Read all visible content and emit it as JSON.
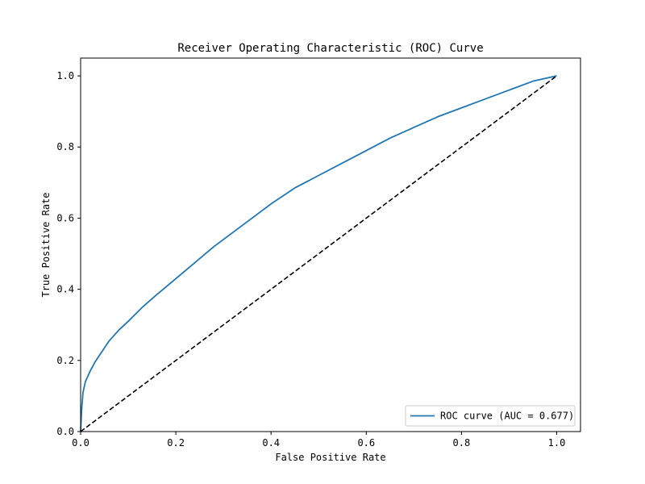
{
  "chart_data": {
    "type": "line",
    "title": "Receiver Operating Characteristic (ROC) Curve",
    "xlabel": "False Positive Rate",
    "ylabel": "True Positive Rate",
    "xlim": [
      0.0,
      1.05
    ],
    "ylim": [
      0.0,
      1.05
    ],
    "xticks": [
      0.0,
      0.2,
      0.4,
      0.6,
      0.8,
      1.0
    ],
    "yticks": [
      0.0,
      0.2,
      0.4,
      0.6,
      0.8,
      1.0
    ],
    "xtick_labels": [
      "0.0",
      "0.2",
      "0.4",
      "0.6",
      "0.8",
      "1.0"
    ],
    "ytick_labels": [
      "0.0",
      "0.2",
      "0.4",
      "0.6",
      "0.8",
      "1.0"
    ],
    "grid": false,
    "legend_position": "lower-right",
    "series": [
      {
        "name": "ROC curve (AUC = 0.677)",
        "color": "#1f77b4",
        "style": "solid",
        "x": [
          0.0,
          0.002,
          0.005,
          0.01,
          0.02,
          0.03,
          0.045,
          0.06,
          0.08,
          0.1,
          0.13,
          0.16,
          0.2,
          0.24,
          0.28,
          0.32,
          0.36,
          0.4,
          0.45,
          0.5,
          0.55,
          0.6,
          0.65,
          0.7,
          0.75,
          0.8,
          0.85,
          0.9,
          0.95,
          1.0
        ],
        "y": [
          0.0,
          0.06,
          0.11,
          0.14,
          0.17,
          0.195,
          0.225,
          0.255,
          0.285,
          0.31,
          0.35,
          0.385,
          0.43,
          0.475,
          0.52,
          0.56,
          0.6,
          0.64,
          0.685,
          0.72,
          0.755,
          0.79,
          0.825,
          0.855,
          0.885,
          0.91,
          0.935,
          0.96,
          0.985,
          1.0
        ]
      },
      {
        "name": "",
        "color": "#000000",
        "style": "dashed",
        "x": [
          0.0,
          1.0
        ],
        "y": [
          0.0,
          1.0
        ]
      }
    ]
  }
}
